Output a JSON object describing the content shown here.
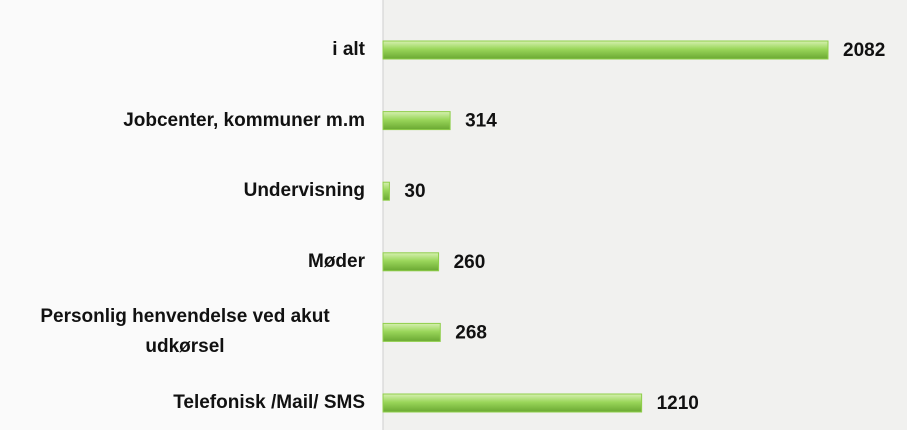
{
  "chart_data": {
    "type": "bar",
    "orientation": "horizontal",
    "categories": [
      "i alt",
      "Jobcenter, kommuner m.m",
      "Undervisning",
      "Møder",
      "Personlig henvendelse ved akut udkørsel",
      "Telefonisk /Mail/ SMS"
    ],
    "values": [
      2082,
      314,
      30,
      260,
      268,
      1210
    ],
    "color": "#8fce4a"
  }
}
